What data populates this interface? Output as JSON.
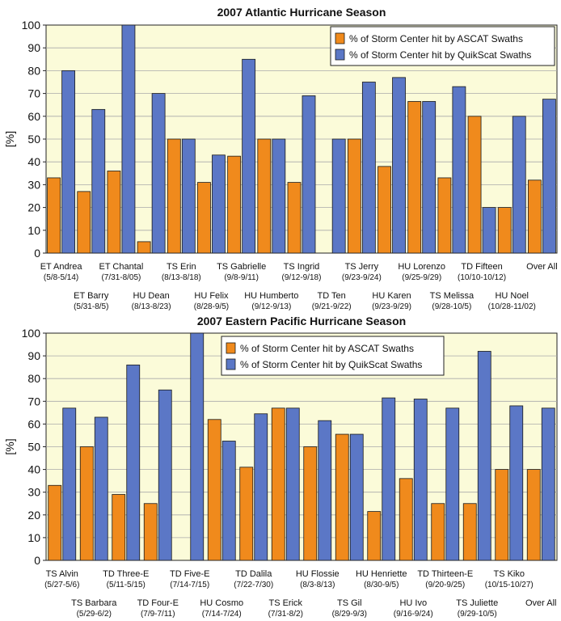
{
  "colors": {
    "plot_bg": "#fbfbd9",
    "ascat": "#f08a1c",
    "quikscat": "#5b77c6",
    "grid": "#aaaaaa"
  },
  "chart_data": [
    {
      "type": "bar",
      "title": "2007 Atlantic Hurricane Season",
      "ylabel": "[%]",
      "xlabel": "",
      "ylim": [
        0,
        100
      ],
      "yticks": [
        0,
        10,
        20,
        30,
        40,
        50,
        60,
        70,
        80,
        90,
        100
      ],
      "grid": true,
      "legend_position": "top-right",
      "categories": [
        {
          "name": "ET Andrea",
          "dates": "(5/8-5/14)"
        },
        {
          "name": "ET Barry",
          "dates": "(5/31-8/5)"
        },
        {
          "name": "ET Chantal",
          "dates": "(7/31-8/05)"
        },
        {
          "name": "HU Dean",
          "dates": "(8/13-8/23)"
        },
        {
          "name": "TS Erin",
          "dates": "(8/13-8/18)"
        },
        {
          "name": "HU Felix",
          "dates": "(8/28-9/5)"
        },
        {
          "name": "TS Gabrielle",
          "dates": "(9/8-9/11)"
        },
        {
          "name": "HU Humberto",
          "dates": "(9/12-9/13)"
        },
        {
          "name": "TS Ingrid",
          "dates": "(9/12-9/18)"
        },
        {
          "name": "TD Ten",
          "dates": "(9/21-9/22)"
        },
        {
          "name": "TS Jerry",
          "dates": "(9/23-9/24)"
        },
        {
          "name": "HU Karen",
          "dates": "(9/23-9/29)"
        },
        {
          "name": "HU Lorenzo",
          "dates": "(9/25-9/29)"
        },
        {
          "name": "TS Melissa",
          "dates": "(9/28-10/5)"
        },
        {
          "name": "TD Fifteen",
          "dates": "(10/10-10/12)"
        },
        {
          "name": "HU Noel",
          "dates": "(10/28-11/02)"
        },
        {
          "name": "Over All",
          "dates": ""
        }
      ],
      "series": [
        {
          "name": "% of Storm Center hit by ASCAT Swaths",
          "color_key": "ascat",
          "values": [
            33,
            27,
            36,
            5,
            50,
            31,
            42.5,
            50,
            31,
            0,
            50,
            38,
            66.5,
            33,
            60,
            20,
            32
          ]
        },
        {
          "name": "% of Storm Center hit by QuikScat Swaths",
          "color_key": "quikscat",
          "values": [
            80,
            63,
            100,
            70,
            50,
            43,
            85,
            50,
            69,
            50,
            75,
            77,
            66.5,
            73,
            20,
            60,
            67.5
          ]
        }
      ]
    },
    {
      "type": "bar",
      "title": "2007 Eastern Pacific Hurricane Season",
      "ylabel": "[%]",
      "xlabel": "",
      "ylim": [
        0,
        100
      ],
      "yticks": [
        0,
        10,
        20,
        30,
        40,
        50,
        60,
        70,
        80,
        90,
        100
      ],
      "grid": true,
      "legend_position": "top-right",
      "categories": [
        {
          "name": "TS Alvin",
          "dates": "(5/27-5/6)"
        },
        {
          "name": "TS Barbara",
          "dates": "(5/29-6/2)"
        },
        {
          "name": "TD Three-E",
          "dates": "(5/11-5/15)"
        },
        {
          "name": "TD Four-E",
          "dates": "(7/9-7/11)"
        },
        {
          "name": "TD Five-E",
          "dates": "(7/14-7/15)"
        },
        {
          "name": "HU Cosmo",
          "dates": "(7/14-7/24)"
        },
        {
          "name": "TD Dalila",
          "dates": "(7/22-7/30)"
        },
        {
          "name": "TS Erick",
          "dates": "(7/31-8/2)"
        },
        {
          "name": "HU Flossie",
          "dates": "(8/3-8/13)"
        },
        {
          "name": "TS Gil",
          "dates": "(8/29-9/3)"
        },
        {
          "name": "HU Henriette",
          "dates": "(8/30-9/5)"
        },
        {
          "name": "HU Ivo",
          "dates": "(9/16-9/24)"
        },
        {
          "name": "TD Thirteen-E",
          "dates": "(9/20-9/25)"
        },
        {
          "name": "TS Juliette",
          "dates": "(9/29-10/5)"
        },
        {
          "name": "TS Kiko",
          "dates": "(10/15-10/27)"
        },
        {
          "name": "Over All",
          "dates": ""
        }
      ],
      "series": [
        {
          "name": "% of Storm Center hit by ASCAT Swaths",
          "color_key": "ascat",
          "values": [
            33,
            50,
            29,
            25,
            0,
            62,
            41,
            67,
            50,
            55.5,
            21.5,
            36,
            25,
            25,
            40,
            40
          ]
        },
        {
          "name": "% of Storm Center hit by QuikScat Swaths",
          "color_key": "quikscat",
          "values": [
            67,
            63,
            86,
            75,
            100,
            52.5,
            64.5,
            67,
            61.5,
            55.5,
            71.5,
            71,
            67,
            92,
            68,
            67
          ]
        }
      ]
    }
  ]
}
